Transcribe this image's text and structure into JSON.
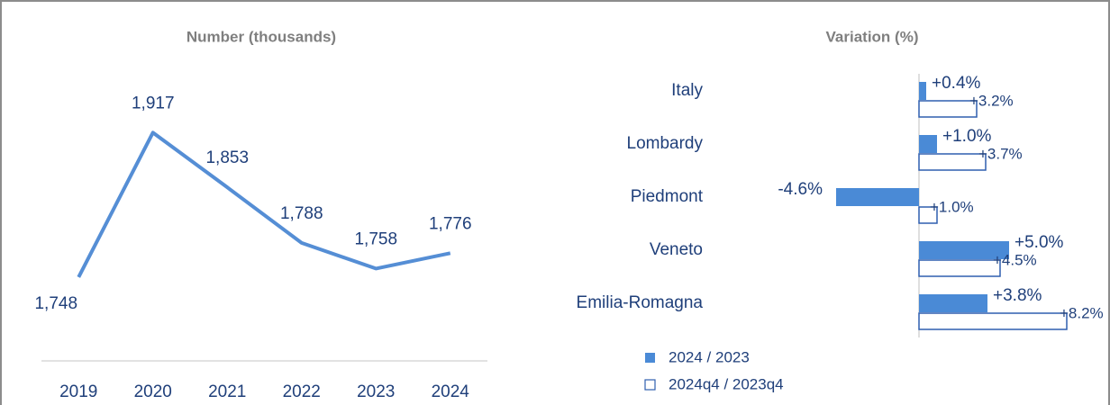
{
  "chart_data": [
    {
      "type": "line",
      "title": "Number (thousands)",
      "categories": [
        "2019",
        "2020",
        "2021",
        "2022",
        "2023",
        "2024"
      ],
      "values": [
        1748,
        1917,
        1853,
        1788,
        1758,
        1776
      ],
      "value_labels": [
        "1,748",
        "1,917",
        "1,853",
        "1,788",
        "1,758",
        "1,776"
      ],
      "color": "#558ed5",
      "ylim": [
        1650,
        1950
      ]
    },
    {
      "type": "hbar",
      "title": "Variation (%)",
      "categories": [
        "Italy",
        "Lombardy",
        "Piedmont",
        "Veneto",
        "Emilia-Romagna"
      ],
      "series": [
        {
          "name": "2024 / 2023",
          "color": "#4a8ad6",
          "fill": true,
          "values": [
            0.4,
            1.0,
            -4.6,
            5.0,
            3.8
          ],
          "value_labels": [
            "+0.4%",
            "+1.0%",
            "-4.6%",
            "+5.0%",
            "+3.8%"
          ]
        },
        {
          "name": "2024q4 / 2023q4",
          "color": "#2f5faf",
          "fill": false,
          "values": [
            3.2,
            3.7,
            1.0,
            4.5,
            8.2
          ],
          "value_labels": [
            "+3.2%",
            "+3.7%",
            "+1.0%",
            "+4.5%",
            "+8.2%"
          ]
        }
      ],
      "xlim": [
        -5,
        10
      ],
      "legend": "bottom-left"
    }
  ]
}
